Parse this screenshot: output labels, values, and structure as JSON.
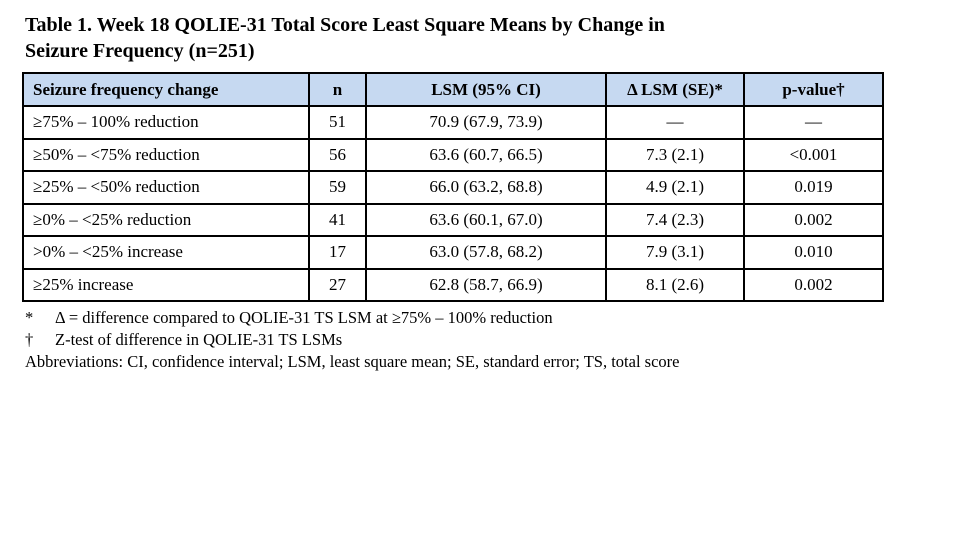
{
  "title": {
    "line1": "Table 1. Week 18 QOLIE-31 Total Score Least Square Means by Change in",
    "line2": "Seizure Frequency (n=251)"
  },
  "table": {
    "columns": [
      "Seizure frequency change",
      "n",
      "LSM (95% CI)",
      "Δ LSM (SE)*",
      "p-value†"
    ],
    "rows": [
      [
        "≥75% – 100% reduction",
        "51",
        "70.9 (67.9, 73.9)",
        "—",
        "—"
      ],
      [
        "≥50% – <75% reduction",
        "56",
        "63.6 (60.7, 66.5)",
        "7.3 (2.1)",
        "<0.001"
      ],
      [
        "≥25% – <50% reduction",
        "59",
        "66.0 (63.2, 68.8)",
        "4.9 (2.1)",
        "0.019"
      ],
      [
        "≥0% – <25% reduction",
        "41",
        "63.6 (60.1, 67.0)",
        "7.4 (2.3)",
        "0.002"
      ],
      [
        ">0% – <25% increase",
        "17",
        "63.0 (57.8, 68.2)",
        "7.9 (3.1)",
        "0.010"
      ],
      [
        "≥25% increase",
        "27",
        "62.8 (58.7, 66.9)",
        "8.1 (2.6)",
        "0.002"
      ]
    ]
  },
  "footnotes": [
    {
      "marker": "*",
      "text": "Δ = difference compared to QOLIE-31 TS LSM at ≥75% – 100% reduction"
    },
    {
      "marker": "†",
      "text": "Z-test of difference in QOLIE-31 TS LSMs"
    }
  ],
  "abbreviations": "Abbreviations: CI, confidence interval; LSM, least square mean; SE, standard error; TS, total score",
  "colors": {
    "header_bg": "#c6d9f1",
    "border": "#000000",
    "text": "#000000",
    "page_bg": "#ffffff"
  }
}
